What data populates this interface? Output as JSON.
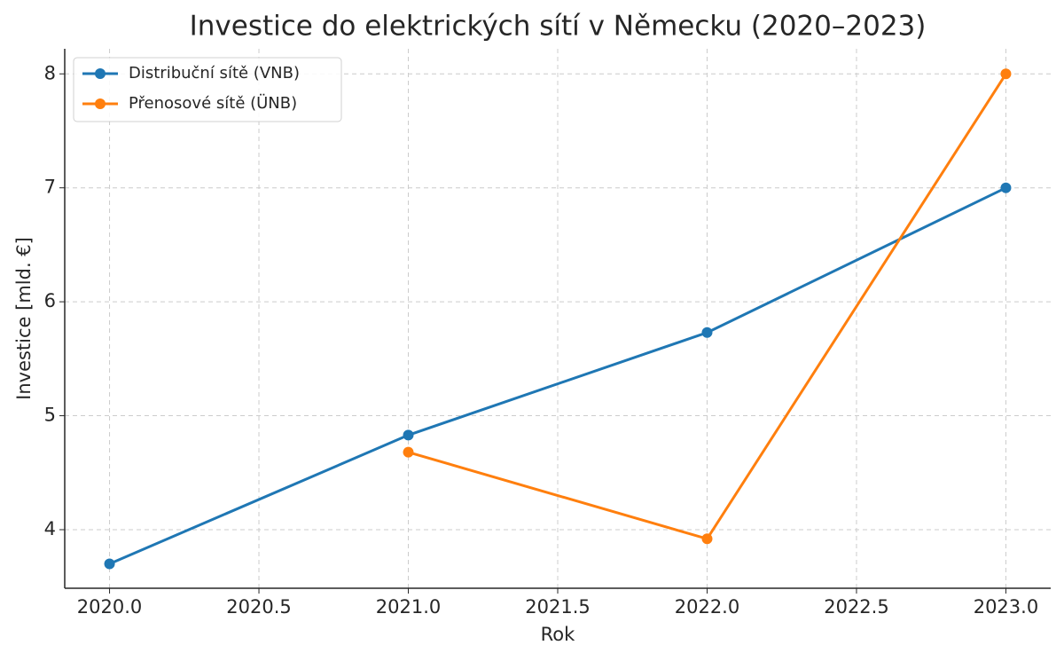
{
  "chart_data": {
    "type": "line",
    "title": "Investice do elektrických sítí v Německu (2020–2023)",
    "x_label": "Rok",
    "y_label": "Investice [mld. €]",
    "x": [
      2020,
      2021,
      2022,
      2023
    ],
    "series": [
      {
        "name": "Distribuční sítě (VNB)",
        "color": "#1f77b4",
        "values": [
          3.7,
          4.83,
          5.73,
          7.0
        ]
      },
      {
        "name": "Přenosové sítě (ÜNB)",
        "color": "#ff7f0e",
        "values": [
          null,
          4.68,
          3.92,
          8.0
        ]
      }
    ],
    "xlim": [
      2019.85,
      2023.15
    ],
    "xticks": [
      {
        "value": 2020,
        "label": "2020.0"
      },
      {
        "value": 2020.5,
        "label": "2020.5"
      },
      {
        "value": 2021,
        "label": "2021.0"
      },
      {
        "value": 2021.5,
        "label": "2021.5"
      },
      {
        "value": 2022,
        "label": "2022.0"
      },
      {
        "value": 2022.5,
        "label": "2022.5"
      },
      {
        "value": 2023,
        "label": "2023.0"
      }
    ],
    "ylim": [
      3.486,
      8.22
    ],
    "yticks": [
      4,
      5,
      6,
      7,
      8
    ],
    "grid": true,
    "legend": "upper left"
  }
}
